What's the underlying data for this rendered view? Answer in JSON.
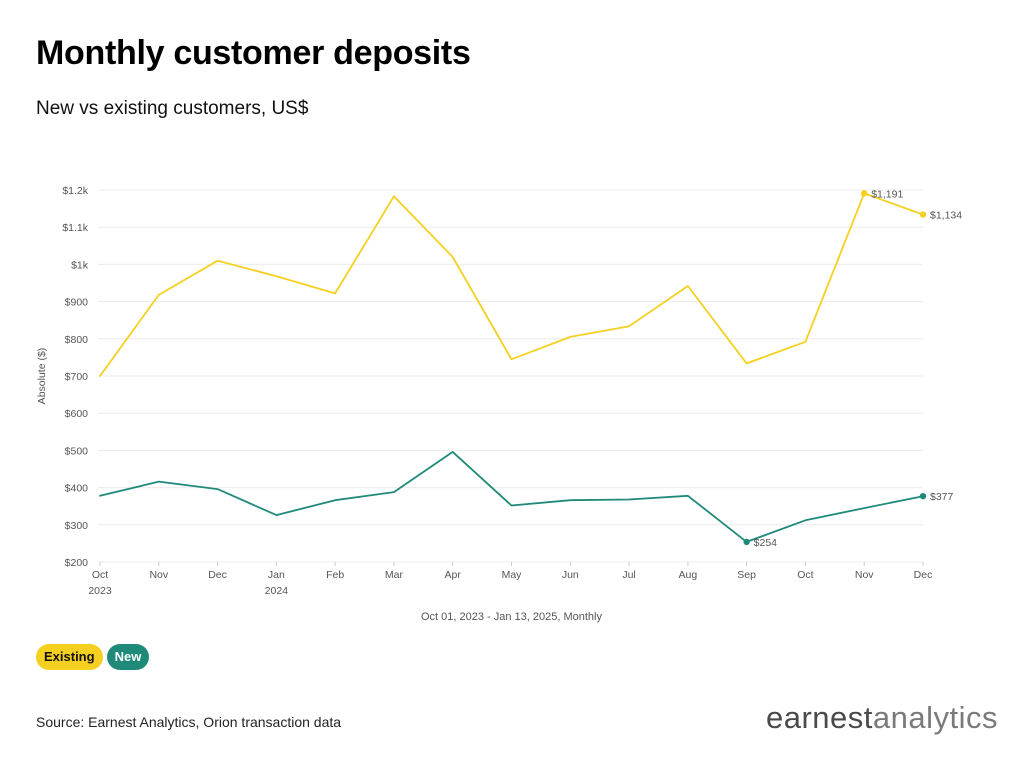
{
  "title": "Monthly customer deposits",
  "subtitle": "New vs existing customers, US$",
  "source": "Source: Earnest Analytics, Orion transaction data",
  "logo": {
    "part1": "earnest",
    "part2": "analytics"
  },
  "legend": {
    "existing": "Existing",
    "new": "New"
  },
  "colors": {
    "existing": "#f5d020",
    "new": "#1f8a7a",
    "grid": "#ececec",
    "axis_text": "#555555"
  },
  "chart_data": {
    "type": "line",
    "ylabel": "Absolute ($)",
    "xlabel": "Oct 01, 2023 - Jan 13, 2025, Monthly",
    "ylim": [
      200,
      1200
    ],
    "y_ticks": [
      {
        "value": 200,
        "label": "$200"
      },
      {
        "value": 300,
        "label": "$300"
      },
      {
        "value": 400,
        "label": "$400"
      },
      {
        "value": 500,
        "label": "$500"
      },
      {
        "value": 600,
        "label": "$600"
      },
      {
        "value": 700,
        "label": "$700"
      },
      {
        "value": 800,
        "label": "$800"
      },
      {
        "value": 900,
        "label": "$900"
      },
      {
        "value": 1000,
        "label": "$1k"
      },
      {
        "value": 1100,
        "label": "$1.1k"
      },
      {
        "value": 1200,
        "label": "$1.2k"
      }
    ],
    "categories": [
      "Oct",
      "Nov",
      "Dec",
      "Jan",
      "Feb",
      "Mar",
      "Apr",
      "May",
      "Jun",
      "Jul",
      "Aug",
      "Sep",
      "Oct",
      "Nov",
      "Dec"
    ],
    "year_labels": [
      {
        "index": 0,
        "label": "2023"
      },
      {
        "index": 3,
        "label": "2024"
      }
    ],
    "grid": true,
    "series": [
      {
        "name": "Existing",
        "values": [
          700,
          918,
          1010,
          968,
          922,
          1183,
          1020,
          745,
          805,
          834,
          942,
          734,
          792,
          1191,
          1134
        ],
        "highlights": [
          {
            "index": 13,
            "label": "$1,191"
          },
          {
            "index": 14,
            "label": "$1,134"
          }
        ]
      },
      {
        "name": "New",
        "values": [
          378,
          416,
          396,
          326,
          366,
          388,
          496,
          352,
          366,
          368,
          378,
          254,
          312,
          345,
          377
        ],
        "highlights": [
          {
            "index": 11,
            "label": "$254"
          },
          {
            "index": 14,
            "label": "$377"
          }
        ]
      }
    ]
  }
}
